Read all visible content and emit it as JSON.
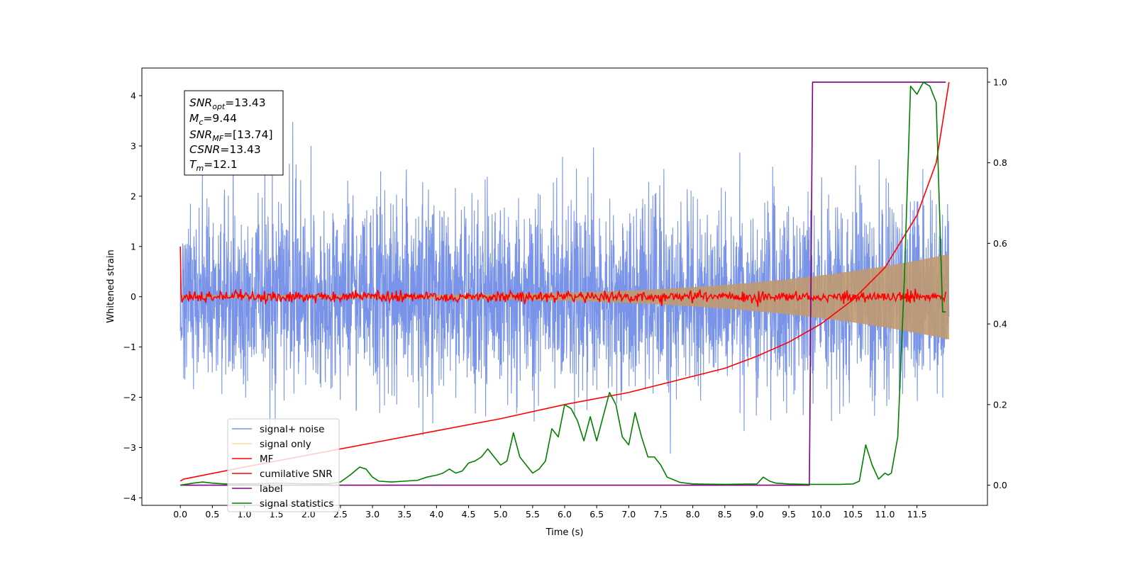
{
  "chart_data": {
    "type": "line",
    "xlabel": "Time (s)",
    "ylabel": "Whitened strain",
    "xlim": [
      -0.6,
      12.6
    ],
    "ylim": [
      -4.15,
      4.55
    ],
    "y2lim": [
      -0.05,
      1.035
    ],
    "x_ticks": [
      "0.0",
      "0.5",
      "1.0",
      "1.5",
      "2.0",
      "2.5",
      "3.0",
      "3.5",
      "4.0",
      "4.5",
      "5.0",
      "5.5",
      "6.0",
      "6.5",
      "7.0",
      "7.5",
      "8.0",
      "8.5",
      "9.0",
      "9.5",
      "10.0",
      "10.5",
      "11.0",
      "11.5"
    ],
    "y_ticks": [
      "−4",
      "−3",
      "−2",
      "−1",
      "0",
      "1",
      "2",
      "3",
      "4"
    ],
    "y2_ticks": [
      "0.0",
      "0.2",
      "0.4",
      "0.6",
      "0.8",
      "1.0"
    ],
    "grid": false,
    "legend_position": "lower-left",
    "annotation": {
      "snr_opt": {
        "sym": "SNR",
        "sub": "opt",
        "value": "=13.43"
      },
      "mc": {
        "sym": "M",
        "sub": "c",
        "value": "=9.44"
      },
      "snr_mf": {
        "sym": "SNR",
        "sub": "MF",
        "value": "=[13.74]"
      },
      "csnr": {
        "sym": "CSNR",
        "sub": "",
        "value": "=13.43"
      },
      "tm": {
        "sym": "T",
        "sub": "m",
        "value": "=12.1"
      }
    },
    "series": [
      {
        "name": "signal+ noise",
        "color": "#7893e8",
        "axis": "left",
        "kind": "noise",
        "t_start": 0.0,
        "t_end": 12.0,
        "sigma": 0.95,
        "note_envelope_peak": 4.15
      },
      {
        "name": "signal only",
        "color": "#fdd9a0",
        "axis": "left",
        "kind": "chirp",
        "t_start": 0.0,
        "t_end": 12.0,
        "amplitude_start": 0.03,
        "amplitude_end": 0.85
      },
      {
        "name": "MF",
        "color": "#ff0000",
        "axis": "left",
        "kind": "mf",
        "t_start": 0.0,
        "t_end": 11.95,
        "initial": 1.0,
        "spread": 0.055,
        "final": -0.05
      },
      {
        "name": "cumilative SNR",
        "color": "#ff0000",
        "axis": "right",
        "x": [
          0.0,
          0.05,
          1.0,
          2.0,
          3.0,
          4.0,
          5.0,
          6.0,
          7.0,
          8.0,
          8.5,
          9.0,
          9.5,
          10.0,
          10.5,
          11.0,
          11.5,
          11.8,
          12.0
        ],
        "y": [
          0.01,
          0.015,
          0.045,
          0.075,
          0.105,
          0.135,
          0.165,
          0.2,
          0.23,
          0.27,
          0.29,
          0.32,
          0.355,
          0.4,
          0.46,
          0.54,
          0.67,
          0.8,
          1.0
        ]
      },
      {
        "name": "label",
        "color": "#800080",
        "axis": "right",
        "x": [
          0.0,
          9.82,
          9.87,
          11.95
        ],
        "y": [
          0.0,
          0.0,
          1.0,
          1.0
        ]
      },
      {
        "name": "signal statistics",
        "color": "#008000",
        "axis": "right",
        "x": [
          0.0,
          0.2,
          0.35,
          0.5,
          0.7,
          1.0,
          1.3,
          1.6,
          1.8,
          2.0,
          2.3,
          2.5,
          2.65,
          2.8,
          2.9,
          3.0,
          3.1,
          3.3,
          3.5,
          3.7,
          3.85,
          4.0,
          4.1,
          4.2,
          4.3,
          4.4,
          4.5,
          4.6,
          4.7,
          4.8,
          4.9,
          5.0,
          5.1,
          5.2,
          5.3,
          5.4,
          5.5,
          5.6,
          5.7,
          5.8,
          5.9,
          6.0,
          6.1,
          6.2,
          6.3,
          6.4,
          6.5,
          6.6,
          6.7,
          6.8,
          6.9,
          7.0,
          7.1,
          7.2,
          7.3,
          7.4,
          7.5,
          7.6,
          7.8,
          8.0,
          8.5,
          9.0,
          9.1,
          9.2,
          9.3,
          9.5,
          9.8,
          10.0,
          10.3,
          10.5,
          10.6,
          10.7,
          10.8,
          10.9,
          11.0,
          11.05,
          11.1,
          11.2,
          11.3,
          11.4,
          11.5,
          11.6,
          11.7,
          11.8,
          11.9,
          11.95
        ],
        "y": [
          0.0,
          0.005,
          0.008,
          0.005,
          0.003,
          0.003,
          0.004,
          0.005,
          0.004,
          0.003,
          0.003,
          0.008,
          0.025,
          0.045,
          0.04,
          0.02,
          0.01,
          0.008,
          0.01,
          0.012,
          0.02,
          0.025,
          0.03,
          0.04,
          0.03,
          0.035,
          0.055,
          0.06,
          0.07,
          0.09,
          0.07,
          0.05,
          0.06,
          0.13,
          0.07,
          0.05,
          0.03,
          0.04,
          0.06,
          0.14,
          0.12,
          0.2,
          0.19,
          0.16,
          0.11,
          0.17,
          0.11,
          0.17,
          0.23,
          0.2,
          0.12,
          0.1,
          0.18,
          0.12,
          0.07,
          0.07,
          0.05,
          0.02,
          0.007,
          0.003,
          0.002,
          0.003,
          0.02,
          0.01,
          0.005,
          0.003,
          0.002,
          0.002,
          0.002,
          0.003,
          0.01,
          0.1,
          0.05,
          0.015,
          0.03,
          0.025,
          0.03,
          0.12,
          0.5,
          0.99,
          0.97,
          1.0,
          0.99,
          0.95,
          0.43,
          0.43
        ]
      }
    ]
  }
}
